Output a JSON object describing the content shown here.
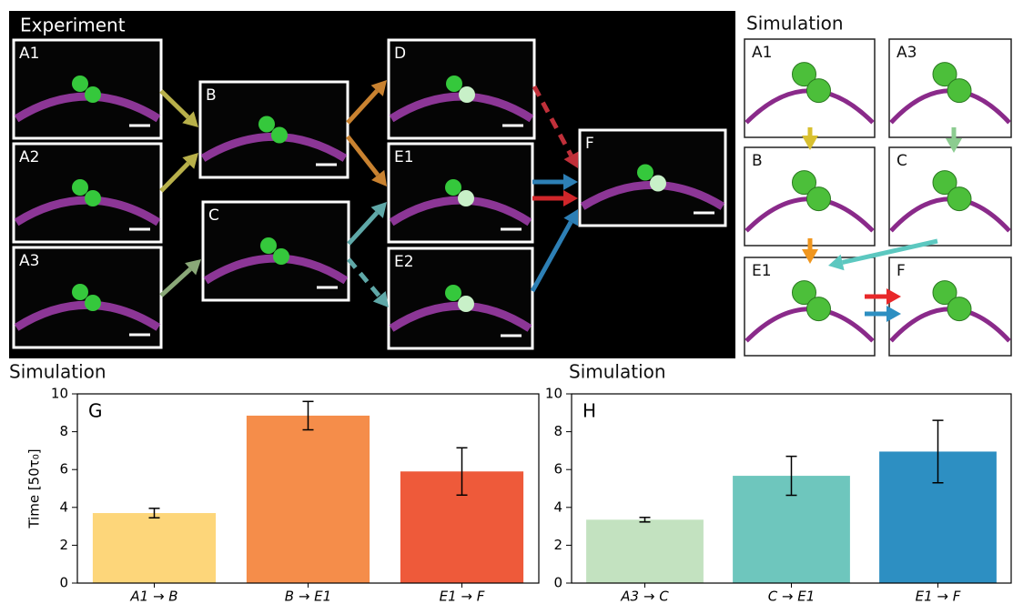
{
  "experiment": {
    "title": "Experiment",
    "panels": [
      "A1",
      "A2",
      "A3",
      "B",
      "C",
      "D",
      "E1",
      "E2",
      "F"
    ]
  },
  "simulation_images": {
    "title": "Simulation",
    "panels": [
      "A1",
      "A3",
      "B",
      "C",
      "E1",
      "F"
    ]
  },
  "chart_data": [
    {
      "type": "bar",
      "title": "Simulation",
      "panel": "G",
      "y_label": "Time [50τ₀]",
      "categories": [
        "A1 → B",
        "B → E1",
        "E1 → F"
      ],
      "values": [
        3.7,
        8.85,
        5.9
      ],
      "errors": [
        0.25,
        0.75,
        1.25
      ],
      "colors": [
        "#fdd67a",
        "#f58d4a",
        "#ee5a3a"
      ],
      "ylim": [
        0,
        10
      ],
      "yticks": [
        0,
        2,
        4,
        6,
        8,
        10
      ]
    },
    {
      "type": "bar",
      "title": "Simulation",
      "panel": "H",
      "categories": [
        "A3 → C",
        "C → E1",
        "E1 → F"
      ],
      "values": [
        3.35,
        5.67,
        6.95
      ],
      "errors": [
        0.12,
        1.03,
        1.65
      ],
      "colors": [
        "#c3e2c0",
        "#6ec6bd",
        "#2d8fc2"
      ],
      "ylim": [
        0,
        10
      ],
      "yticks": [
        0,
        2,
        4,
        6,
        8,
        10
      ]
    }
  ]
}
